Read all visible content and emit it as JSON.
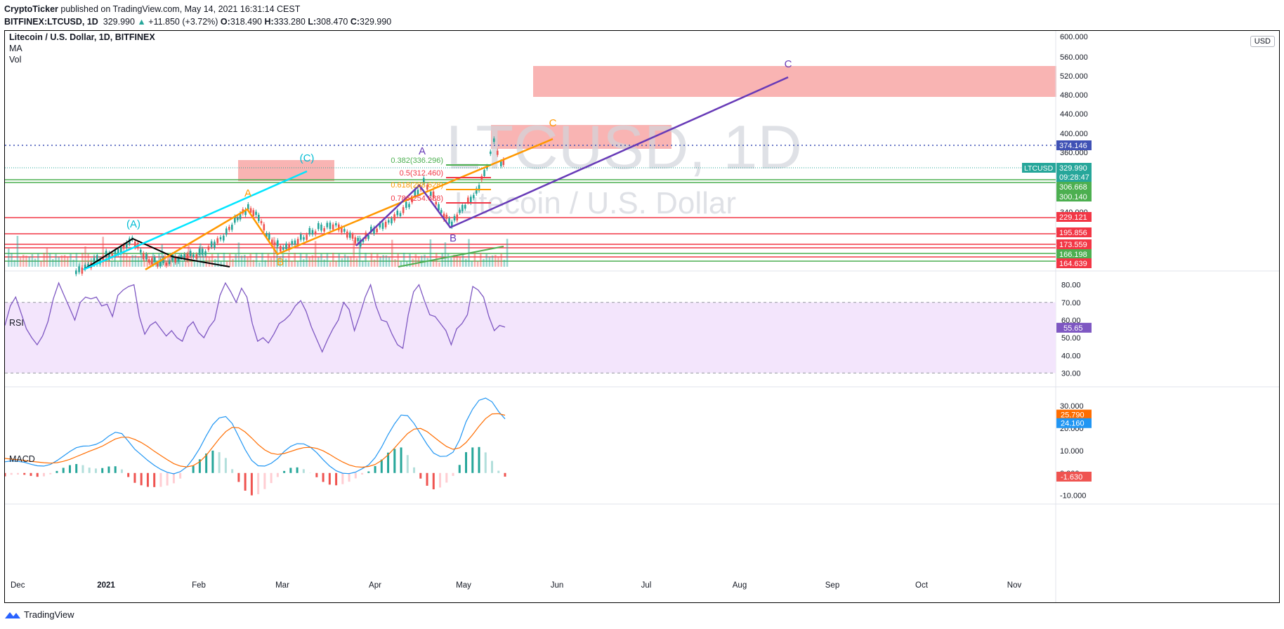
{
  "header": {
    "author": "CryptoTicker",
    "published": "published on TradingView.com, May 14, 2021 16:31:14 CEST",
    "symbol": "BITFINEX:LTCUSD, 1D",
    "last": "329.990",
    "change": "+11.850 (+3.72%)",
    "o_label": "O:",
    "o": "318.490",
    "h_label": "H:",
    "h": "333.280",
    "l_label": "L:",
    "l": "308.470",
    "c_label": "C:",
    "c": "329.990"
  },
  "legend": {
    "title": "Litecoin / U.S. Dollar, 1D, BITFINEX",
    "ma": "MA",
    "vol": "Vol",
    "rsi": "RSI",
    "macd": "MACD"
  },
  "watermark": {
    "ticker": "LTCUSD, 1D",
    "name": "Litecoin / U.S. Dollar"
  },
  "currency": "USD",
  "footer": {
    "brand": "TradingView"
  },
  "colors": {
    "up": "#26a69a",
    "down": "#ef5350",
    "zone": "#f7a1a0",
    "green_line": "#4caf50",
    "red_line": "#f23645",
    "orange": "#ff9800",
    "purple": "#673ab7",
    "cyan": "#00e5ff",
    "rsi": "#7e57c2",
    "rsi_band": "#f3e5fc",
    "macd": "#2196f3",
    "signal": "#ff6d00"
  },
  "chart_data": [
    {
      "type": "candlestick",
      "title": "Litecoin / U.S. Dollar, 1D, BITFINEX",
      "ylim": [
        160,
        600
      ],
      "y_ticks": [
        "600.000",
        "560.000",
        "520.000",
        "480.000",
        "440.000",
        "400.000",
        "360.000",
        "340.000"
      ],
      "x_ticks": [
        "Dec",
        "2021",
        "Feb",
        "Mar",
        "Apr",
        "May",
        "Jun",
        "Jul",
        "Aug",
        "Sep",
        "Oct",
        "Nov"
      ],
      "price_labels": [
        {
          "value": 374.146,
          "text": "374.146",
          "color": "#3f51b5"
        },
        {
          "value": 329.99,
          "text": "329.990",
          "color": "#26a69a",
          "tag": "LTCUSD",
          "countdown": "09:28:47"
        },
        {
          "value": 306.668,
          "text": "306.668",
          "color": "#4caf50"
        },
        {
          "value": 300.14,
          "text": "300.140",
          "color": "#4caf50"
        },
        {
          "value": 229.121,
          "text": "229.121",
          "color": "#f23645"
        },
        {
          "value": 195.856,
          "text": "195.856",
          "color": "#f23645"
        },
        {
          "value": 173.559,
          "text": "173.559",
          "color": "#f23645"
        },
        {
          "value": 166.198,
          "text": "166.198",
          "color": "#4caf50"
        },
        {
          "value": 164.639,
          "text": "164.639",
          "color": "#f23645"
        }
      ],
      "fib_levels": [
        {
          "text": "0.382(336.296)",
          "value": 336.296,
          "color": "#4caf50"
        },
        {
          "text": "0.5(312.460)",
          "value": 312.46,
          "color": "#f23645"
        },
        {
          "text": "0.618(288.628)",
          "value": 288.628,
          "color": "#ff9800"
        },
        {
          "text": "0.786(254.688)",
          "value": 254.688,
          "color": "#f23645"
        }
      ],
      "wave_labels": [
        {
          "text": "(A)",
          "color": "#00bcd4"
        },
        {
          "text": "(C)",
          "color": "#00bcd4"
        },
        {
          "text": "A",
          "color": "#ff9800"
        },
        {
          "text": "B",
          "color": "#ff9800"
        },
        {
          "text": "C",
          "color": "#ff9800"
        },
        {
          "text": "A",
          "color": "#673ab7"
        },
        {
          "text": "B",
          "color": "#673ab7"
        },
        {
          "text": "C",
          "color": "#673ab7"
        }
      ]
    },
    {
      "type": "line",
      "title": "RSI",
      "ylim": [
        25,
        85
      ],
      "y_ticks": [
        "80.00",
        "70.00",
        "60.00",
        "50.00",
        "40.00",
        "30.00"
      ],
      "last": 55.65,
      "last_text": "55.65",
      "series": [
        {
          "values": [
            57,
            68,
            73,
            64,
            55,
            50,
            46,
            51,
            59,
            72,
            81,
            74,
            67,
            60,
            70,
            73,
            72,
            73,
            68,
            69,
            62,
            74,
            77,
            79,
            80,
            62,
            52,
            57,
            59,
            55,
            51,
            54,
            50,
            48,
            56,
            59,
            53,
            50,
            56,
            60,
            74,
            81,
            76,
            70,
            78,
            73,
            58,
            48,
            50,
            47,
            52,
            58,
            60,
            63,
            68,
            71,
            65,
            56,
            49,
            42,
            49,
            55,
            60,
            70,
            66,
            54,
            63,
            73,
            80,
            68,
            60,
            59,
            52,
            46,
            44,
            63,
            76,
            80,
            71,
            63,
            62,
            58,
            54,
            46,
            55,
            58,
            63,
            79,
            77,
            73,
            62,
            54,
            57,
            56
          ]
        }
      ]
    },
    {
      "type": "line",
      "title": "MACD",
      "ylim": [
        -12,
        36
      ],
      "y_ticks": [
        "30.000",
        "20.000",
        "10.000",
        "0.000",
        "-10.000"
      ],
      "last_texts": [
        "25.790",
        "24.160",
        "-1.630"
      ],
      "series": [
        {
          "name": "MACD",
          "values": [
            5,
            5.4,
            5.2,
            4.8,
            3.9,
            3.2,
            3.1,
            3.8,
            5.5,
            7.5,
            9.6,
            11.3,
            12.0,
            12.1,
            12.8,
            14.2,
            16.5,
            18.2,
            17.6,
            14.2,
            10.6,
            8.1,
            5.6,
            3.4,
            1.6,
            0.3,
            -0.4,
            0.6,
            2.7,
            6.5,
            11.1,
            16.6,
            21.6,
            24.6,
            25.2,
            22.1,
            16.2,
            10.4,
            5.6,
            3.2,
            3.1,
            4.3,
            6.5,
            9.6,
            11.9,
            13.1,
            13.0,
            11.6,
            9.1,
            5.9,
            3.1,
            1.0,
            -0.1,
            -0.3,
            0.4,
            1.9,
            3.6,
            6.9,
            11.6,
            17.2,
            22.0,
            25.9,
            25.6,
            22.1,
            17.4,
            12.8,
            8.9,
            7.4,
            7.5,
            9.3,
            14.8,
            22.9,
            28.5,
            32.5,
            33.5,
            31.8,
            27.5,
            24.16
          ]
        },
        {
          "name": "Signal",
          "values": [
            6.5,
            6.2,
            5.9,
            5.6,
            5.2,
            4.9,
            4.6,
            4.4,
            4.6,
            5.2,
            6.1,
            7.3,
            8.5,
            9.7,
            10.8,
            12.0,
            13.6,
            15.2,
            16.0,
            16.0,
            15.0,
            13.6,
            11.8,
            9.7,
            7.8,
            5.9,
            4.2,
            3.1,
            2.7,
            3.3,
            5.0,
            7.9,
            11.6,
            15.3,
            18.5,
            20.4,
            20.2,
            18.3,
            15.6,
            12.7,
            10.3,
            8.8,
            8.3,
            8.7,
            9.6,
            10.6,
            11.3,
            11.5,
            11.0,
            9.9,
            8.3,
            6.5,
            4.9,
            3.6,
            2.8,
            2.6,
            2.9,
            3.8,
            5.6,
            8.1,
            11.2,
            14.5,
            17.6,
            19.6,
            19.9,
            18.5,
            16.2,
            13.9,
            11.8,
            10.6,
            11.2,
            13.6,
            17.1,
            20.9,
            24.3,
            26.4,
            26.5,
            25.79
          ]
        }
      ],
      "histogram_last": -1.63
    }
  ]
}
